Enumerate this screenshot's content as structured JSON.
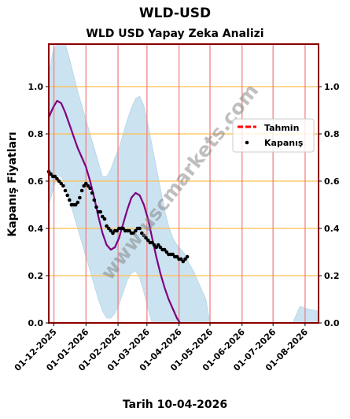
{
  "header": {
    "title": "WLD-USD",
    "subtitle": "WLD USD Yapay Zeka Analizi"
  },
  "footer": {
    "date_label": "Tarih 10-04-2026"
  },
  "watermark": "www.uscmarkets.com",
  "colors": {
    "frame": "#8b0000",
    "vertical_lines": "#f08080",
    "horizontal_lines": "#ffc04d",
    "band": "#a9cfe6",
    "forecast_line": "#800080",
    "legend_forecast": "#ff0000",
    "points": "#000000"
  },
  "chart_data": {
    "type": "line",
    "title": "WLD USD Yapay Zeka Analizi",
    "xlabel": "Tarih 10-04-2026",
    "ylabel": "Kapanış Fiyatları",
    "ylim": [
      0.0,
      1.18
    ],
    "xlim": [
      "2025-11-26",
      "2026-08-14"
    ],
    "yticks": [
      0.0,
      0.2,
      0.4,
      0.6,
      0.8,
      1.0
    ],
    "yticklabels": [
      "0.0",
      "0.2",
      "0.4",
      "0.6",
      "0.8",
      "1.0"
    ],
    "xticks": [
      "2025-12-01",
      "2026-01-01",
      "2026-02-01",
      "2026-03-01",
      "2026-04-01",
      "2026-05-01",
      "2026-06-01",
      "2026-07-01",
      "2026-08-01"
    ],
    "xticklabels": [
      "01-12-2025",
      "01-01-2026",
      "01-02-2026",
      "01-03-2026",
      "01-04-2026",
      "01-05-2026",
      "01-06-2026",
      "01-07-2026",
      "01-08-2026"
    ],
    "grid": true,
    "legend_position": "right",
    "legend": [
      {
        "label": "Tahmin",
        "kind": "dashed-line"
      },
      {
        "label": "Kapanış",
        "kind": "point"
      }
    ],
    "forecast": {
      "name": "Tahmin",
      "x": [
        "2025-11-26",
        "2025-11-30",
        "2025-12-04",
        "2025-12-08",
        "2025-12-12",
        "2025-12-16",
        "2025-12-20",
        "2025-12-24",
        "2025-12-28",
        "2026-01-01",
        "2026-01-05",
        "2026-01-09",
        "2026-01-13",
        "2026-01-17",
        "2026-01-21",
        "2026-01-25",
        "2026-01-29",
        "2026-02-02",
        "2026-02-06",
        "2026-02-10",
        "2026-02-14",
        "2026-02-18",
        "2026-02-22",
        "2026-02-26",
        "2026-03-02",
        "2026-03-06",
        "2026-03-10",
        "2026-03-14",
        "2026-03-18",
        "2026-03-22",
        "2026-03-26",
        "2026-03-30",
        "2026-04-02"
      ],
      "y": [
        0.87,
        0.91,
        0.94,
        0.93,
        0.89,
        0.84,
        0.79,
        0.74,
        0.7,
        0.66,
        0.6,
        0.53,
        0.45,
        0.38,
        0.33,
        0.31,
        0.32,
        0.36,
        0.42,
        0.48,
        0.53,
        0.55,
        0.54,
        0.5,
        0.44,
        0.36,
        0.28,
        0.21,
        0.15,
        0.1,
        0.06,
        0.02,
        0.0
      ]
    },
    "band": {
      "x": [
        "2025-11-26",
        "2025-11-30",
        "2025-12-04",
        "2025-12-08",
        "2025-12-12",
        "2025-12-16",
        "2025-12-20",
        "2025-12-24",
        "2025-12-28",
        "2026-01-01",
        "2026-01-05",
        "2026-01-09",
        "2026-01-13",
        "2026-01-17",
        "2026-01-21",
        "2026-01-25",
        "2026-01-29",
        "2026-02-02",
        "2026-02-06",
        "2026-02-10",
        "2026-02-14",
        "2026-02-18",
        "2026-02-22",
        "2026-02-26",
        "2026-03-02",
        "2026-03-06",
        "2026-03-10",
        "2026-03-14",
        "2026-03-18",
        "2026-03-22",
        "2026-03-26",
        "2026-03-30",
        "2026-04-03",
        "2026-04-07",
        "2026-04-11",
        "2026-04-15",
        "2026-04-19",
        "2026-04-23",
        "2026-04-27",
        "2026-05-01",
        "2026-06-01",
        "2026-07-01",
        "2026-07-20",
        "2026-07-27",
        "2026-08-03",
        "2026-08-14"
      ],
      "upper": [
        1.05,
        1.15,
        1.18,
        1.18,
        1.18,
        1.12,
        1.05,
        0.98,
        0.92,
        0.86,
        0.8,
        0.74,
        0.68,
        0.62,
        0.62,
        0.65,
        0.7,
        0.74,
        0.8,
        0.86,
        0.91,
        0.95,
        0.96,
        0.92,
        0.84,
        0.75,
        0.66,
        0.57,
        0.48,
        0.41,
        0.36,
        0.33,
        0.31,
        0.29,
        0.25,
        0.22,
        0.18,
        0.14,
        0.1,
        0.0,
        0.0,
        0.0,
        0.0,
        0.07,
        0.06,
        0.05
      ],
      "lower": [
        0.5,
        0.56,
        0.62,
        0.62,
        0.58,
        0.52,
        0.46,
        0.4,
        0.34,
        0.28,
        0.22,
        0.16,
        0.1,
        0.05,
        0.02,
        0.02,
        0.04,
        0.08,
        0.13,
        0.18,
        0.21,
        0.22,
        0.19,
        0.13,
        0.06,
        0.0,
        0.0,
        0.0,
        0.0,
        0.0,
        0.0,
        0.0,
        0.0,
        0.0,
        0.0,
        0.0,
        0.0,
        0.0,
        0.0,
        0.0,
        0.0,
        0.0,
        0.0,
        0.0,
        0.0,
        0.0
      ]
    },
    "closing": {
      "name": "Kapanış",
      "x": [
        "2025-11-26",
        "2025-11-28",
        "2025-11-30",
        "2025-12-02",
        "2025-12-04",
        "2025-12-06",
        "2025-12-08",
        "2025-12-10",
        "2025-12-12",
        "2025-12-14",
        "2025-12-16",
        "2025-12-18",
        "2025-12-20",
        "2025-12-22",
        "2025-12-24",
        "2025-12-26",
        "2025-12-28",
        "2025-12-30",
        "2026-01-01",
        "2026-01-03",
        "2026-01-05",
        "2026-01-07",
        "2026-01-09",
        "2026-01-11",
        "2026-01-13",
        "2026-01-15",
        "2026-01-17",
        "2026-01-19",
        "2026-01-21",
        "2026-01-23",
        "2026-01-25",
        "2026-01-27",
        "2026-01-29",
        "2026-01-31",
        "2026-02-02",
        "2026-02-04",
        "2026-02-06",
        "2026-02-08",
        "2026-02-10",
        "2026-02-12",
        "2026-02-14",
        "2026-02-16",
        "2026-02-18",
        "2026-02-20",
        "2026-02-22",
        "2026-02-24",
        "2026-02-26",
        "2026-02-28",
        "2026-03-02",
        "2026-03-04",
        "2026-03-06",
        "2026-03-08",
        "2026-03-10",
        "2026-03-12",
        "2026-03-14",
        "2026-03-16",
        "2026-03-18",
        "2026-03-20",
        "2026-03-22",
        "2026-03-24",
        "2026-03-26",
        "2026-03-28",
        "2026-03-30",
        "2026-04-01",
        "2026-04-03",
        "2026-04-05",
        "2026-04-07",
        "2026-04-09"
      ],
      "y": [
        0.64,
        0.63,
        0.62,
        0.62,
        0.61,
        0.6,
        0.59,
        0.58,
        0.56,
        0.54,
        0.52,
        0.5,
        0.5,
        0.5,
        0.51,
        0.53,
        0.56,
        0.58,
        0.59,
        0.58,
        0.57,
        0.55,
        0.52,
        0.49,
        0.47,
        0.47,
        0.45,
        0.44,
        0.41,
        0.4,
        0.39,
        0.38,
        0.39,
        0.39,
        0.4,
        0.4,
        0.4,
        0.39,
        0.39,
        0.39,
        0.38,
        0.38,
        0.39,
        0.4,
        0.4,
        0.38,
        0.37,
        0.36,
        0.35,
        0.34,
        0.34,
        0.33,
        0.32,
        0.33,
        0.32,
        0.31,
        0.31,
        0.3,
        0.29,
        0.29,
        0.29,
        0.28,
        0.28,
        0.27,
        0.27,
        0.26,
        0.27,
        0.28
      ]
    }
  }
}
